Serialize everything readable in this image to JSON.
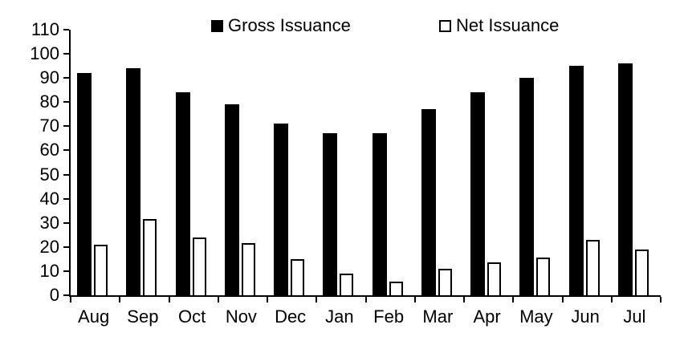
{
  "chart_data": {
    "type": "bar",
    "categories": [
      "Aug",
      "Sep",
      "Oct",
      "Nov",
      "Dec",
      "Jan",
      "Feb",
      "Mar",
      "Apr",
      "May",
      "Jun",
      "Jul"
    ],
    "series": [
      {
        "name": "Gross Issuance",
        "values": [
          92,
          94,
          84,
          79,
          71,
          67,
          67,
          77,
          84,
          90,
          95,
          96
        ],
        "fill": "#000000",
        "outline": "#000000"
      },
      {
        "name": "Net Issuance",
        "values": [
          21,
          31.5,
          24,
          21.5,
          15,
          9,
          5.5,
          11,
          13.5,
          15.5,
          23,
          19
        ],
        "fill": "#ffffff",
        "outline": "#000000"
      }
    ],
    "title": "",
    "xlabel": "",
    "ylabel": "",
    "ylim": [
      0,
      110
    ],
    "yticks": [
      0,
      10,
      20,
      30,
      40,
      50,
      60,
      70,
      80,
      90,
      100,
      110
    ],
    "grid": false,
    "legend_position": "top"
  },
  "colors": {
    "background": "#ffffff",
    "axis": "#000000",
    "text": "#000000",
    "gross_bar": "#000000",
    "net_bar_fill": "#ffffff",
    "net_bar_border": "#000000"
  }
}
